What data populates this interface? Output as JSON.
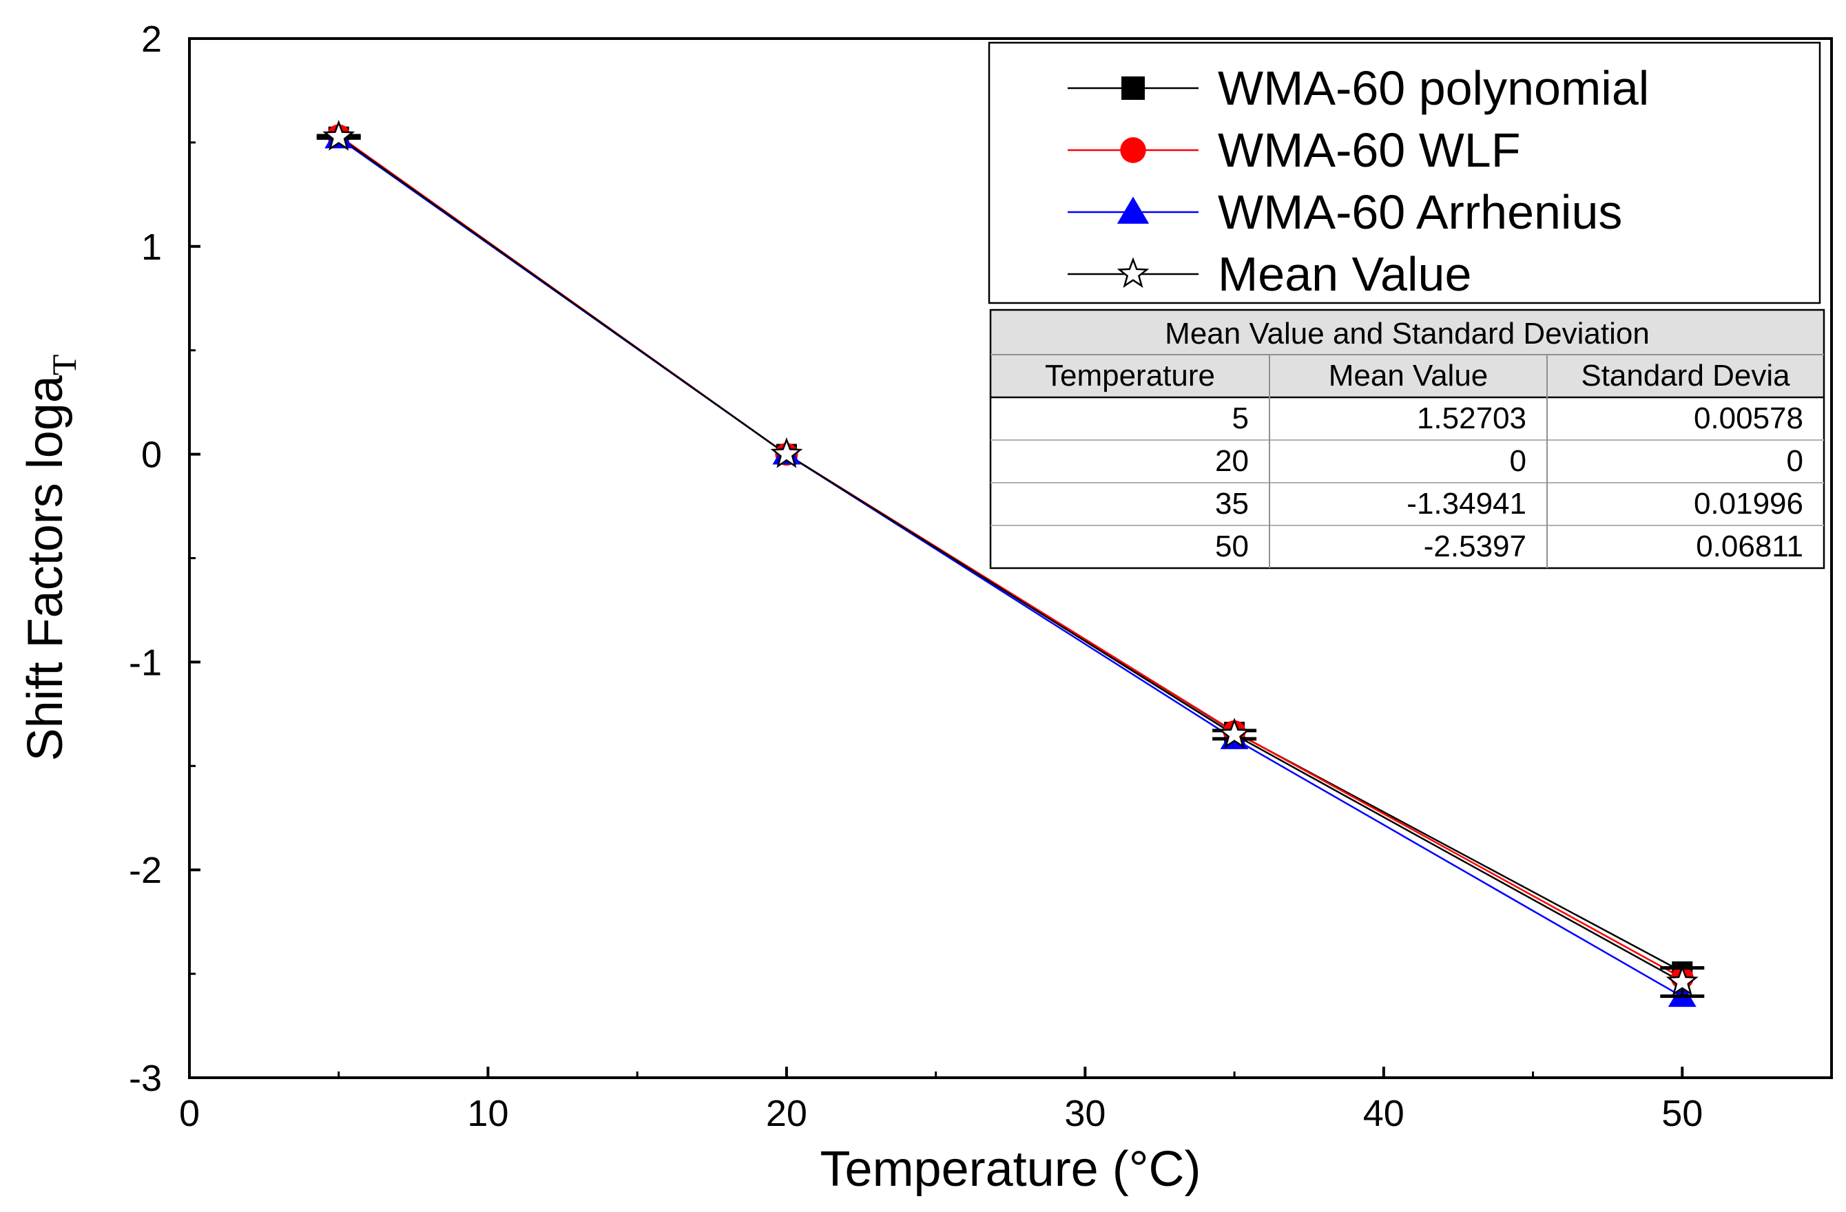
{
  "chart_data": {
    "type": "line",
    "xlabel": "Temperature (°C)",
    "ylabel": "Shift Factors loga",
    "ylabel_subscript": "T",
    "xlim": [
      0,
      55
    ],
    "ylim": [
      -3,
      2
    ],
    "xticks": [
      0,
      10,
      20,
      30,
      40,
      50
    ],
    "yticks": [
      -3,
      -2,
      -1,
      0,
      1,
      2
    ],
    "grid": false,
    "legend_position": "top-right",
    "x": [
      5,
      20,
      35,
      50
    ],
    "series": [
      {
        "name": "WMA-60  polynomial",
        "values": [
          1.527,
          0.0,
          -1.337,
          -2.49
        ],
        "color": "#000000",
        "marker": "square"
      },
      {
        "name": "WMA-60  WLF",
        "values": [
          1.533,
          0.0,
          -1.335,
          -2.52
        ],
        "color": "#ff0000",
        "marker": "circle"
      },
      {
        "name": "WMA-60  Arrhenius",
        "values": [
          1.521,
          0.0,
          -1.37,
          -2.61
        ],
        "color": "#0000ff",
        "marker": "triangle"
      },
      {
        "name": "Mean Value",
        "values": [
          1.52703,
          0.0,
          -1.34941,
          -2.5397
        ],
        "color": "#000000",
        "marker": "star",
        "error": [
          0.00578,
          0.0,
          0.01996,
          0.06811
        ]
      }
    ],
    "table": {
      "title": "Mean Value and Standard Deviation",
      "columns": [
        "Temperature",
        "Mean Value",
        "Standard Devia"
      ],
      "rows": [
        [
          "5",
          "1.52703",
          "0.00578"
        ],
        [
          "20",
          "0",
          "0"
        ],
        [
          "35",
          "-1.34941",
          "0.01996"
        ],
        [
          "50",
          "-2.5397",
          "0.06811"
        ]
      ]
    }
  }
}
